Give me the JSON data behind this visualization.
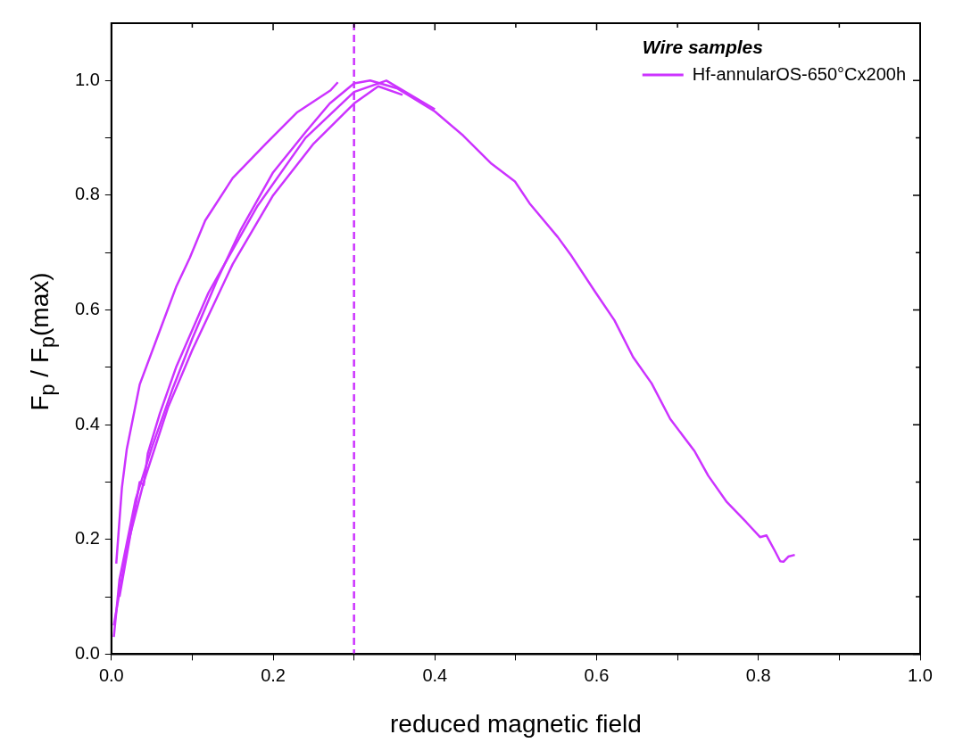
{
  "chart_data": {
    "type": "line",
    "xlabel": "reduced magnetic field",
    "ylabel": "F$_{p}$ / F$_{p}$(max)",
    "legend_title": "Wire samples",
    "legend": "top right",
    "grid": false,
    "marker": "none",
    "line_style": "solid",
    "xlim": [
      0,
      1.0
    ],
    "ylim": [
      0,
      1.1
    ],
    "xticks": [
      {
        "value": 0,
        "label": "0.0"
      },
      {
        "value": 0.1,
        "label": null
      },
      0.2,
      {
        "value": 0.3,
        "label": null
      },
      0.4,
      {
        "value": 0.5,
        "label": null
      },
      0.6,
      {
        "value": 0.7,
        "label": null
      },
      0.8,
      {
        "value": 0.9,
        "label": null
      },
      {
        "value": 1.0,
        "label": "1.0"
      }
    ],
    "yticks": [
      {
        "value": 0,
        "label": "0.0"
      },
      {
        "value": 0.1,
        "label": null
      },
      0.2,
      {
        "value": 0.3,
        "label": null
      },
      0.4,
      {
        "value": 0.5,
        "label": null
      },
      0.6,
      {
        "value": 0.7,
        "label": null
      },
      0.8,
      {
        "value": 0.9,
        "label": null
      },
      {
        "value": 1.0,
        "label": "1.0"
      }
    ],
    "ref_lines": [
      {
        "axis": "x",
        "value": 0.3,
        "color": "#cc33ff",
        "line_style": "dashed"
      }
    ],
    "series": [
      {
        "name": "Hf-annularOS-650°Cx200h",
        "color": "#cc33ff",
        "x": [
          0.003,
          0.01,
          0.02,
          0.03,
          0.05,
          0.075,
          0.1,
          0.13,
          0.16,
          0.2,
          0.24,
          0.27,
          0.3,
          0.32,
          0.354,
          0.4,
          0.435,
          0.47,
          0.499,
          0.517,
          0.552,
          0.569,
          0.598,
          0.622,
          0.645,
          0.668,
          0.691,
          0.721,
          0.738,
          0.761,
          0.785,
          0.802,
          0.81,
          0.82,
          0.827,
          0.831,
          0.837,
          0.845
        ],
        "values": [
          0.03,
          0.13,
          0.2,
          0.27,
          0.36,
          0.46,
          0.55,
          0.65,
          0.74,
          0.84,
          0.91,
          0.96,
          0.995,
          1.0,
          0.986,
          0.946,
          0.904,
          0.855,
          0.824,
          0.786,
          0.727,
          0.694,
          0.632,
          0.582,
          0.518,
          0.472,
          0.41,
          0.354,
          0.311,
          0.265,
          0.23,
          0.204,
          0.207,
          0.181,
          0.162,
          0.161,
          0.17,
          0.173
        ]
      },
      {
        "color": "#cc33ff",
        "x": [
          0.006,
          0.013,
          0.019,
          0.035,
          0.058,
          0.08,
          0.097,
          0.116,
          0.15,
          0.191,
          0.23,
          0.271,
          0.28
        ],
        "values": [
          0.158,
          0.29,
          0.357,
          0.47,
          0.557,
          0.64,
          0.691,
          0.756,
          0.83,
          0.89,
          0.945,
          0.983,
          0.997
        ]
      },
      {
        "color": "#cc33ff",
        "x": [
          0.003,
          0.02,
          0.04,
          0.07,
          0.1,
          0.15,
          0.2,
          0.25,
          0.3,
          0.33,
          0.36
        ],
        "values": [
          0.05,
          0.19,
          0.3,
          0.43,
          0.53,
          0.68,
          0.8,
          0.89,
          0.96,
          0.99,
          0.975
        ]
      },
      {
        "color": "#cc33ff",
        "x": [
          0.01,
          0.02,
          0.03,
          0.035,
          0.04,
          0.045,
          0.06,
          0.08,
          0.12,
          0.18,
          0.24,
          0.3,
          0.34,
          0.4
        ],
        "values": [
          0.1,
          0.18,
          0.26,
          0.3,
          0.295,
          0.35,
          0.42,
          0.5,
          0.63,
          0.78,
          0.9,
          0.98,
          1.0,
          0.95
        ]
      }
    ]
  }
}
